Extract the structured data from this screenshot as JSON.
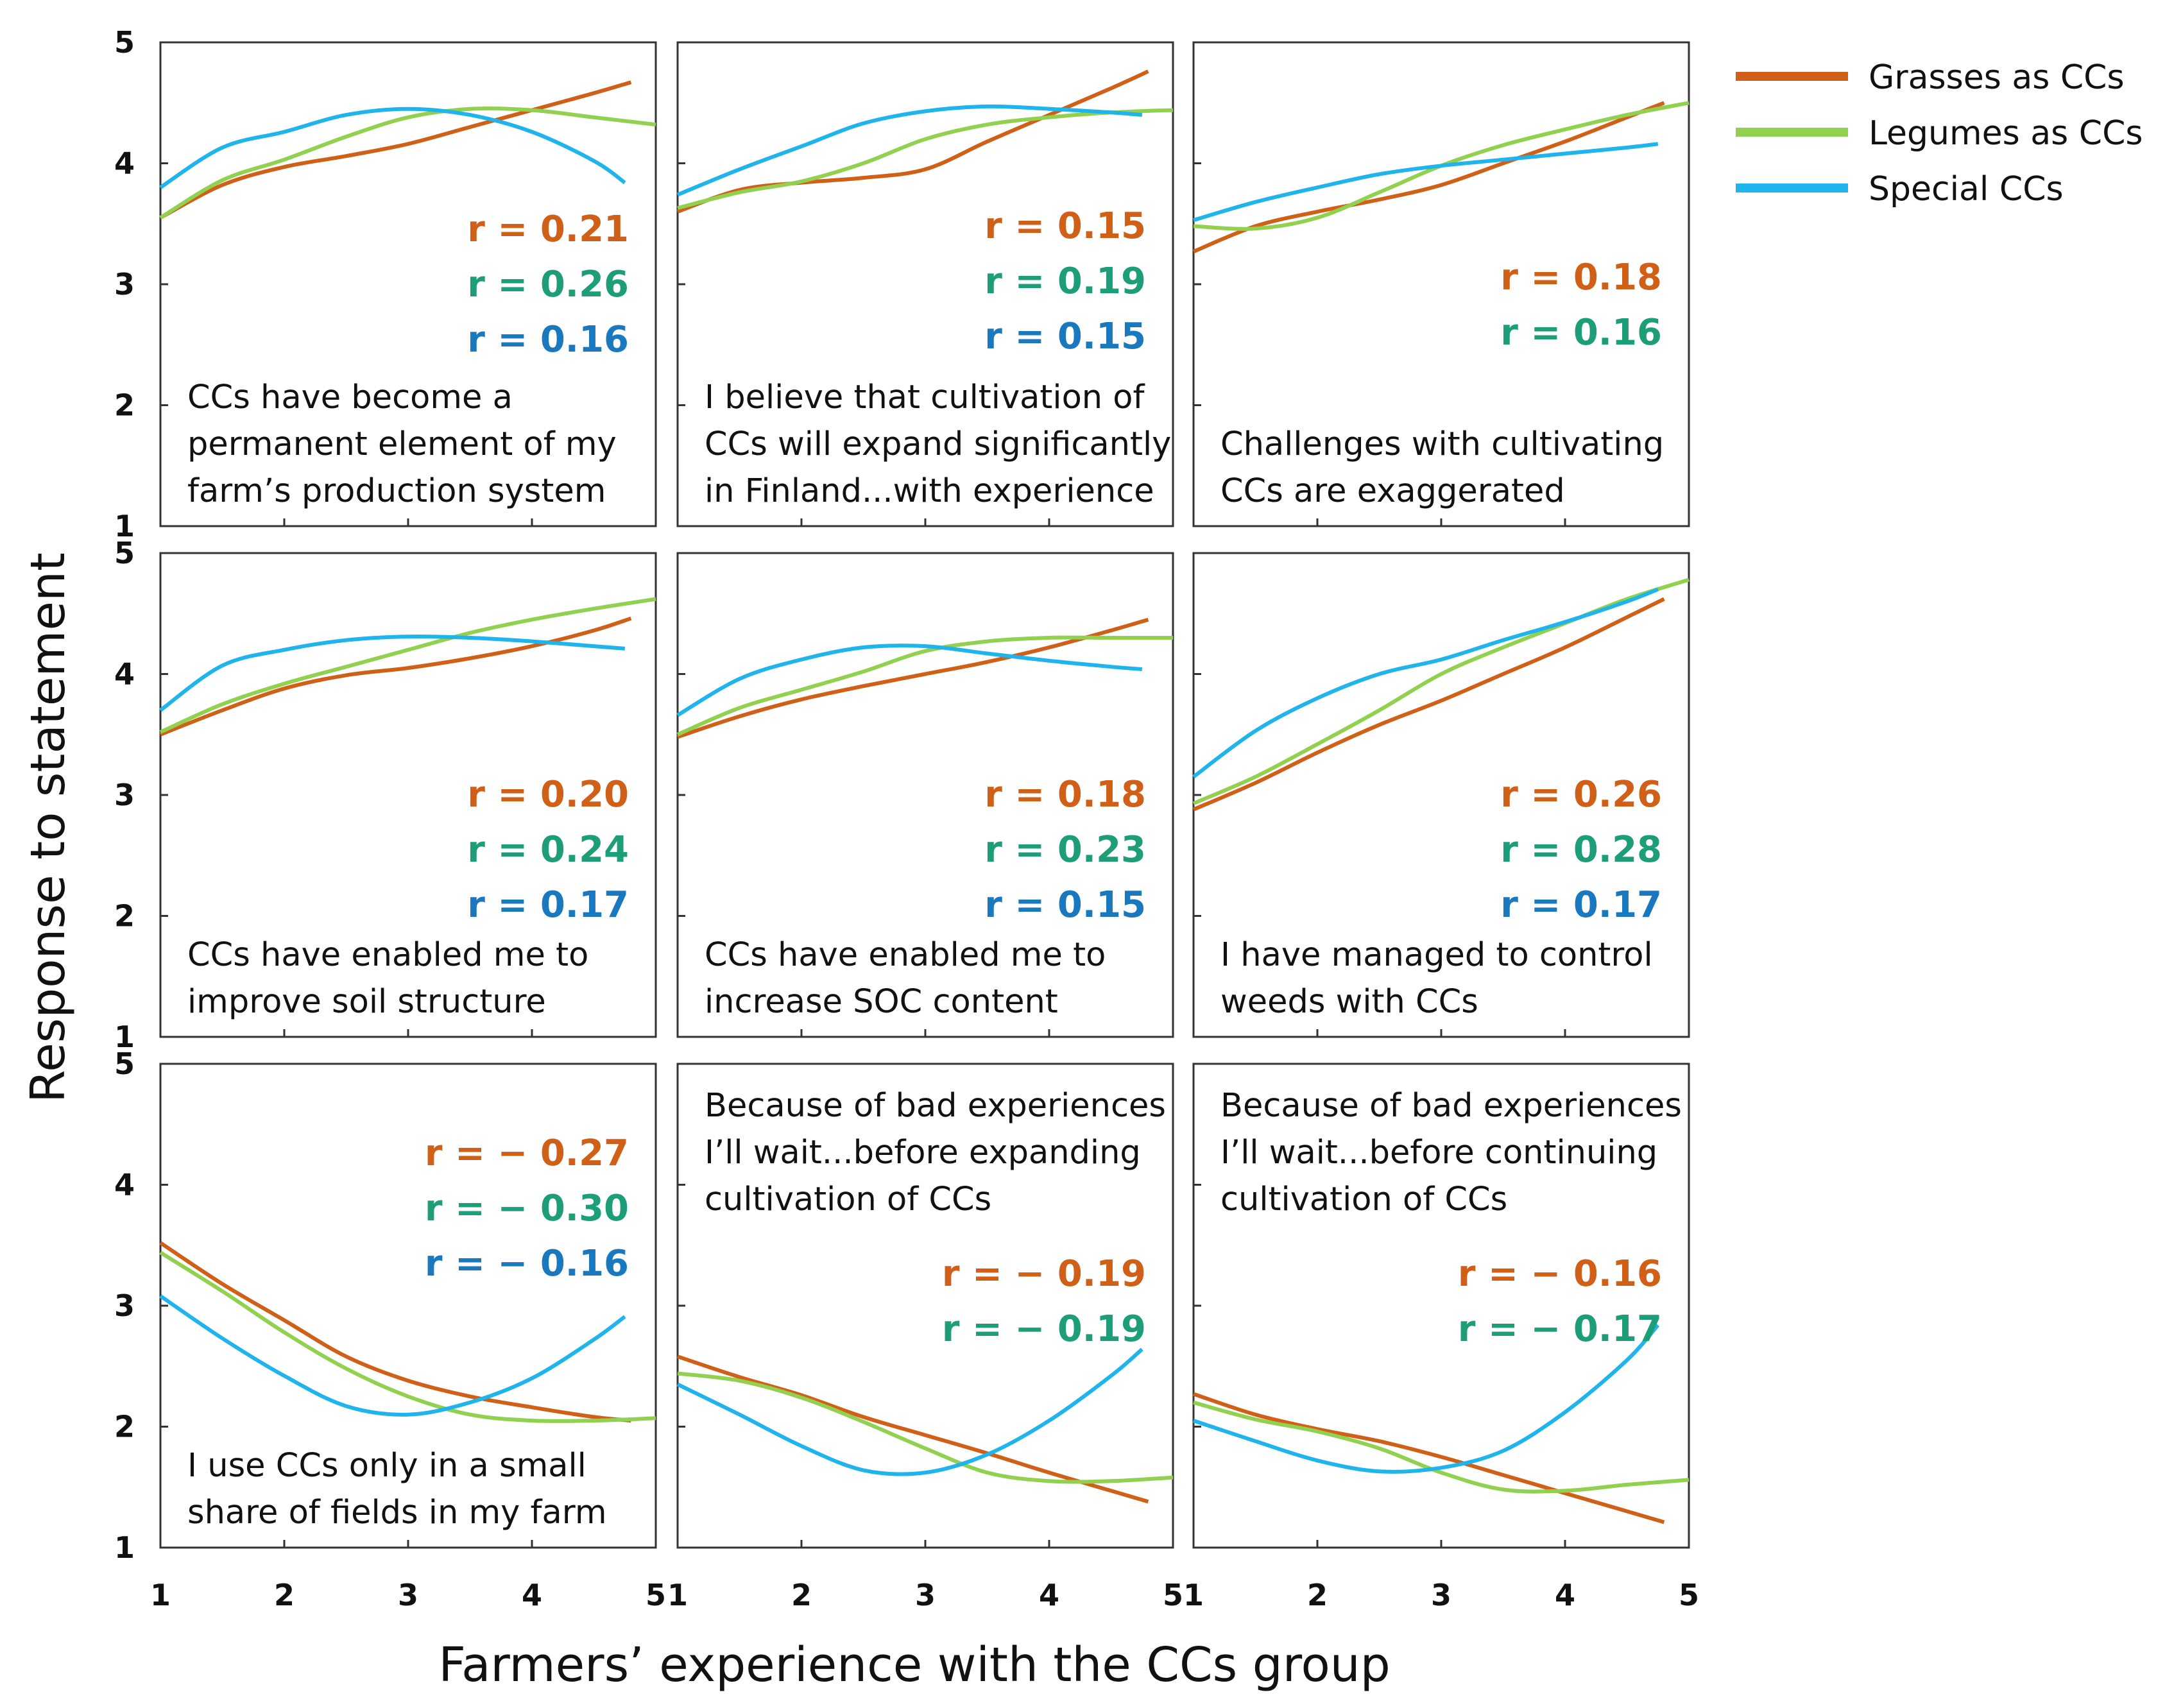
{
  "chart_data": {
    "type": "line",
    "layout": "3x3 small multiples",
    "xlabel": "Farmers’ experience with the CCs group",
    "ylabel": "Response to statement",
    "xlim": [
      1,
      5
    ],
    "ylim": [
      1,
      5
    ],
    "x_ticks": [
      "1",
      "2",
      "3",
      "4",
      "5"
    ],
    "y_ticks": [
      "1",
      "2",
      "3",
      "4",
      "5"
    ],
    "legend": {
      "placement": "top-right",
      "entries": [
        {
          "name": "Grasses as CCs",
          "color": "#d06018"
        },
        {
          "name": "Legumes as CCs",
          "color": "#92d050"
        },
        {
          "name": "Special CCs",
          "color": "#1fb4ec"
        }
      ]
    },
    "r_colors": [
      "#d06018",
      "#1e9e78",
      "#1a78bf"
    ],
    "panels": [
      {
        "statement": [
          "CCs have become a",
          "permanent element of my",
          "farm’s production system"
        ],
        "r_labels": [
          "r = 0.21",
          "r = 0.26",
          "r = 0.16"
        ],
        "series": [
          {
            "name": "Grasses as CCs",
            "x": [
              1,
              1.5,
              2,
              2.5,
              3,
              3.5,
              4,
              4.5,
              4.8
            ],
            "y": [
              3.55,
              3.82,
              3.97,
              4.06,
              4.16,
              4.3,
              4.44,
              4.58,
              4.67
            ]
          },
          {
            "name": "Legumes as CCs",
            "x": [
              1,
              1.5,
              2,
              2.5,
              3,
              3.5,
              4,
              4.5,
              5
            ],
            "y": [
              3.55,
              3.86,
              4.03,
              4.22,
              4.38,
              4.45,
              4.44,
              4.38,
              4.32
            ]
          },
          {
            "name": "Special CCs",
            "x": [
              1,
              1.5,
              2,
              2.5,
              3,
              3.5,
              4,
              4.5,
              4.75
            ],
            "y": [
              3.8,
              4.13,
              4.26,
              4.4,
              4.45,
              4.4,
              4.26,
              4.02,
              3.84
            ]
          }
        ]
      },
      {
        "statement": [
          "I believe that cultivation of",
          "CCs will expand significantly",
          "in Finland...with experience"
        ],
        "r_labels": [
          "r = 0.15",
          "r = 0.19",
          "r = 0.15"
        ],
        "series": [
          {
            "name": "Grasses as CCs",
            "x": [
              1,
              1.5,
              2,
              2.5,
              3,
              3.5,
              4,
              4.5,
              4.8
            ],
            "y": [
              3.6,
              3.78,
              3.84,
              3.88,
              3.95,
              4.18,
              4.4,
              4.62,
              4.76
            ]
          },
          {
            "name": "Legumes as CCs",
            "x": [
              1,
              1.5,
              2,
              2.5,
              3,
              3.5,
              4,
              4.5,
              5
            ],
            "y": [
              3.63,
              3.76,
              3.85,
              4.0,
              4.2,
              4.32,
              4.38,
              4.42,
              4.44
            ]
          },
          {
            "name": "Special CCs",
            "x": [
              1,
              1.5,
              2,
              2.5,
              3,
              3.5,
              4,
              4.5,
              4.75
            ],
            "y": [
              3.74,
              3.95,
              4.14,
              4.33,
              4.43,
              4.47,
              4.45,
              4.42,
              4.4
            ]
          }
        ]
      },
      {
        "statement": [
          "Challenges with cultivating",
          "CCs are exaggerated"
        ],
        "r_labels": [
          "r = 0.18",
          "r = 0.16"
        ],
        "series": [
          {
            "name": "Grasses as CCs",
            "x": [
              1,
              1.5,
              2,
              2.5,
              3,
              3.5,
              4,
              4.5,
              4.8
            ],
            "y": [
              3.27,
              3.48,
              3.6,
              3.7,
              3.82,
              4.0,
              4.18,
              4.38,
              4.5
            ]
          },
          {
            "name": "Legumes as CCs",
            "x": [
              1,
              1.5,
              2,
              2.5,
              3,
              3.5,
              4,
              4.5,
              5
            ],
            "y": [
              3.48,
              3.46,
              3.55,
              3.76,
              3.98,
              4.15,
              4.28,
              4.4,
              4.5
            ]
          },
          {
            "name": "Special CCs",
            "x": [
              1,
              1.5,
              2,
              2.5,
              3,
              3.5,
              4,
              4.5,
              4.75
            ],
            "y": [
              3.53,
              3.68,
              3.8,
              3.91,
              3.98,
              4.03,
              4.08,
              4.13,
              4.16
            ]
          }
        ]
      },
      {
        "statement": [
          "CCs have enabled me to",
          "improve soil structure"
        ],
        "r_labels": [
          "r = 0.20",
          "r = 0.24",
          "r = 0.17"
        ],
        "series": [
          {
            "name": "Grasses as CCs",
            "x": [
              1,
              1.5,
              2,
              2.5,
              3,
              3.5,
              4,
              4.5,
              4.8
            ],
            "y": [
              3.5,
              3.7,
              3.88,
              3.99,
              4.05,
              4.13,
              4.23,
              4.36,
              4.46
            ]
          },
          {
            "name": "Legumes as CCs",
            "x": [
              1,
              1.5,
              2,
              2.5,
              3,
              3.5,
              4,
              4.5,
              5
            ],
            "y": [
              3.52,
              3.75,
              3.92,
              4.06,
              4.2,
              4.34,
              4.45,
              4.54,
              4.62
            ]
          },
          {
            "name": "Special CCs",
            "x": [
              1,
              1.5,
              2,
              2.5,
              3,
              3.5,
              4,
              4.5,
              4.75
            ],
            "y": [
              3.7,
              4.07,
              4.2,
              4.28,
              4.31,
              4.3,
              4.27,
              4.23,
              4.21
            ]
          }
        ]
      },
      {
        "statement": [
          "CCs have enabled me to",
          "increase SOC content"
        ],
        "r_labels": [
          "r = 0.18",
          "r = 0.23",
          "r = 0.15"
        ],
        "series": [
          {
            "name": "Grasses as CCs",
            "x": [
              1,
              1.5,
              2,
              2.5,
              3,
              3.5,
              4,
              4.5,
              4.8
            ],
            "y": [
              3.48,
              3.65,
              3.79,
              3.9,
              4.0,
              4.1,
              4.22,
              4.36,
              4.45
            ]
          },
          {
            "name": "Legumes as CCs",
            "x": [
              1,
              1.5,
              2,
              2.5,
              3,
              3.5,
              4,
              4.5,
              5
            ],
            "y": [
              3.5,
              3.72,
              3.87,
              4.02,
              4.19,
              4.27,
              4.3,
              4.3,
              4.3
            ]
          },
          {
            "name": "Special CCs",
            "x": [
              1,
              1.5,
              2,
              2.5,
              3,
              3.5,
              4,
              4.5,
              4.75
            ],
            "y": [
              3.66,
              3.96,
              4.12,
              4.22,
              4.23,
              4.17,
              4.11,
              4.06,
              4.04
            ]
          }
        ]
      },
      {
        "statement": [
          "I have managed to control",
          "weeds with CCs"
        ],
        "r_labels": [
          "r = 0.26",
          "r = 0.28",
          "r = 0.17"
        ],
        "series": [
          {
            "name": "Grasses as CCs",
            "x": [
              1,
              1.5,
              2,
              2.5,
              3,
              3.5,
              4,
              4.5,
              4.8
            ],
            "y": [
              2.88,
              3.1,
              3.35,
              3.58,
              3.78,
              4.0,
              4.22,
              4.47,
              4.62
            ]
          },
          {
            "name": "Legumes as CCs",
            "x": [
              1,
              1.5,
              2,
              2.5,
              3,
              3.5,
              4,
              4.5,
              5
            ],
            "y": [
              2.93,
              3.15,
              3.42,
              3.7,
              4.0,
              4.22,
              4.42,
              4.62,
              4.78
            ]
          },
          {
            "name": "Special CCs",
            "x": [
              1,
              1.5,
              2,
              2.5,
              3,
              3.5,
              4,
              4.5,
              4.75
            ],
            "y": [
              3.15,
              3.53,
              3.8,
              4.0,
              4.12,
              4.28,
              4.43,
              4.6,
              4.7
            ]
          }
        ]
      },
      {
        "statement": [
          "I use CCs only in a small",
          "share of fields in my farm"
        ],
        "r_labels": [
          "r = − 0.27",
          "r = − 0.30",
          "r = − 0.16"
        ],
        "series": [
          {
            "name": "Grasses as CCs",
            "x": [
              1,
              1.5,
              2,
              2.5,
              3,
              3.5,
              4,
              4.5,
              4.8
            ],
            "y": [
              3.52,
              3.18,
              2.88,
              2.58,
              2.38,
              2.25,
              2.16,
              2.08,
              2.05
            ]
          },
          {
            "name": "Legumes as CCs",
            "x": [
              1,
              1.5,
              2,
              2.5,
              3,
              3.5,
              4,
              4.5,
              5
            ],
            "y": [
              3.44,
              3.12,
              2.78,
              2.48,
              2.25,
              2.1,
              2.05,
              2.05,
              2.07
            ]
          },
          {
            "name": "Special CCs",
            "x": [
              1,
              1.5,
              2,
              2.5,
              3,
              3.5,
              4,
              4.5,
              4.75
            ],
            "y": [
              3.08,
              2.73,
              2.42,
              2.17,
              2.1,
              2.2,
              2.4,
              2.72,
              2.91
            ]
          }
        ]
      },
      {
        "statement": [
          "Because of bad experiences",
          "I’ll wait...before expanding",
          "cultivation of CCs"
        ],
        "r_labels": [
          "r = − 0.19",
          "r = − 0.19"
        ],
        "series": [
          {
            "name": "Grasses as CCs",
            "x": [
              1,
              1.5,
              2,
              2.5,
              3,
              3.5,
              4,
              4.5,
              4.8
            ],
            "y": [
              2.58,
              2.41,
              2.26,
              2.08,
              1.93,
              1.78,
              1.62,
              1.47,
              1.38
            ]
          },
          {
            "name": "Legumes as CCs",
            "x": [
              1,
              1.5,
              2,
              2.5,
              3,
              3.5,
              4,
              4.5,
              5
            ],
            "y": [
              2.44,
              2.38,
              2.24,
              2.04,
              1.82,
              1.62,
              1.55,
              1.55,
              1.58
            ]
          },
          {
            "name": "Special CCs",
            "x": [
              1,
              1.5,
              2,
              2.5,
              3,
              3.5,
              4,
              4.5,
              4.75
            ],
            "y": [
              2.35,
              2.1,
              1.84,
              1.64,
              1.62,
              1.77,
              2.05,
              2.42,
              2.64
            ]
          }
        ]
      },
      {
        "statement": [
          "Because of bad experiences",
          "I’ll wait...before continuing",
          "cultivation of CCs"
        ],
        "r_labels": [
          "r = − 0.16",
          "r = − 0.17"
        ],
        "series": [
          {
            "name": "Grasses as CCs",
            "x": [
              1,
              1.5,
              2,
              2.5,
              3,
              3.5,
              4,
              4.5,
              4.8
            ],
            "y": [
              2.27,
              2.1,
              1.98,
              1.88,
              1.75,
              1.6,
              1.45,
              1.3,
              1.21
            ]
          },
          {
            "name": "Legumes as CCs",
            "x": [
              1,
              1.5,
              2,
              2.5,
              3,
              3.5,
              4,
              4.5,
              5
            ],
            "y": [
              2.2,
              2.06,
              1.96,
              1.82,
              1.62,
              1.48,
              1.47,
              1.52,
              1.56
            ]
          },
          {
            "name": "Special CCs",
            "x": [
              1,
              1.5,
              2,
              2.5,
              3,
              3.5,
              4,
              4.5,
              4.75
            ],
            "y": [
              2.05,
              1.88,
              1.72,
              1.63,
              1.66,
              1.8,
              2.12,
              2.55,
              2.84
            ]
          }
        ]
      }
    ]
  }
}
